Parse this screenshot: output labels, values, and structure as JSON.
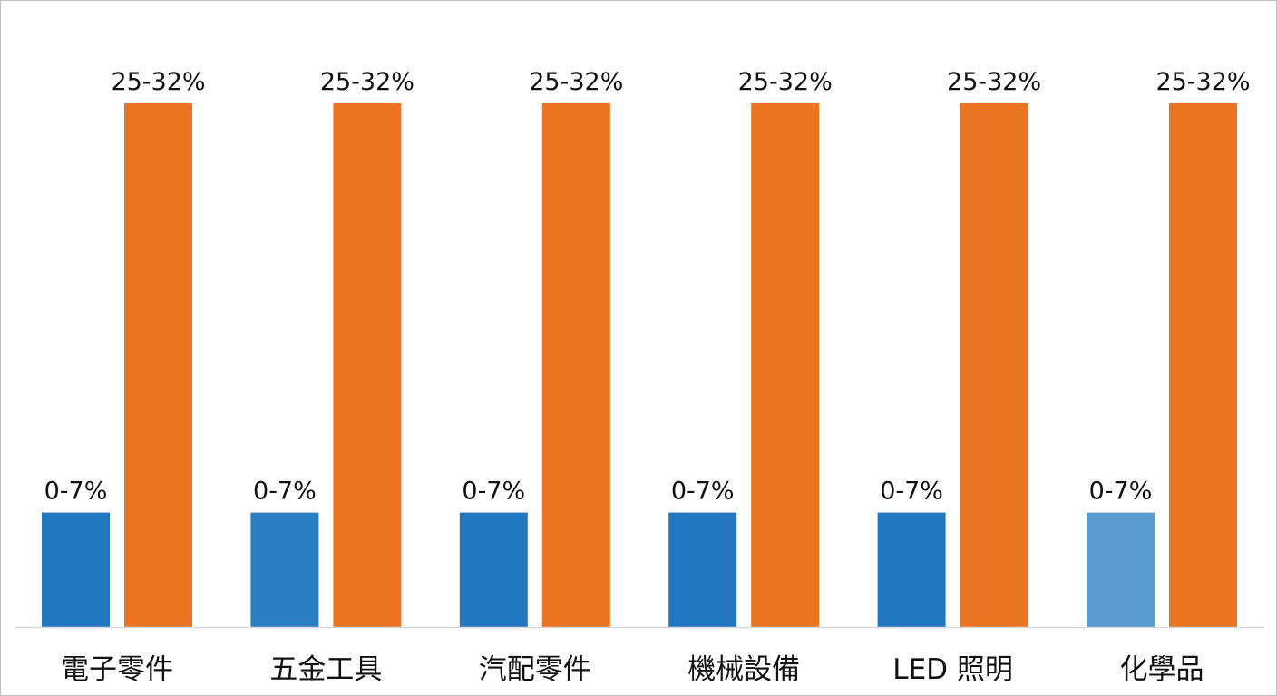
{
  "chart_data": {
    "type": "bar",
    "categories": [
      "電子零件",
      "五金工具",
      "汽配零件",
      "機械設備",
      "LED 照明",
      "化學品"
    ],
    "series": [
      {
        "values": [
          0.07,
          0.07,
          0.07,
          0.07,
          0.07,
          0.07
        ],
        "labels": [
          "0-7%",
          "0-7%",
          "0-7%",
          "0-7%",
          "0-7%",
          "0-7%"
        ],
        "colors": [
          "#2277c0",
          "#2d7dc2",
          "#2277c0",
          "#2277c0",
          "#2277c0",
          "#5a9bd0"
        ]
      },
      {
        "values": [
          0.32,
          0.32,
          0.32,
          0.32,
          0.32,
          0.32
        ],
        "labels": [
          "25-32%",
          "25-32%",
          "25-32%",
          "25-32%",
          "25-32%",
          "25-32%"
        ],
        "colors": [
          "#eb7423",
          "#eb7423",
          "#eb7423",
          "#eb7423",
          "#eb7423",
          "#eb7423"
        ]
      }
    ],
    "ylim": [
      0,
      0.32
    ],
    "title": "",
    "xlabel": "",
    "ylabel": "",
    "grid": false,
    "legend": "none",
    "axis_color": "#d9d9d9"
  }
}
